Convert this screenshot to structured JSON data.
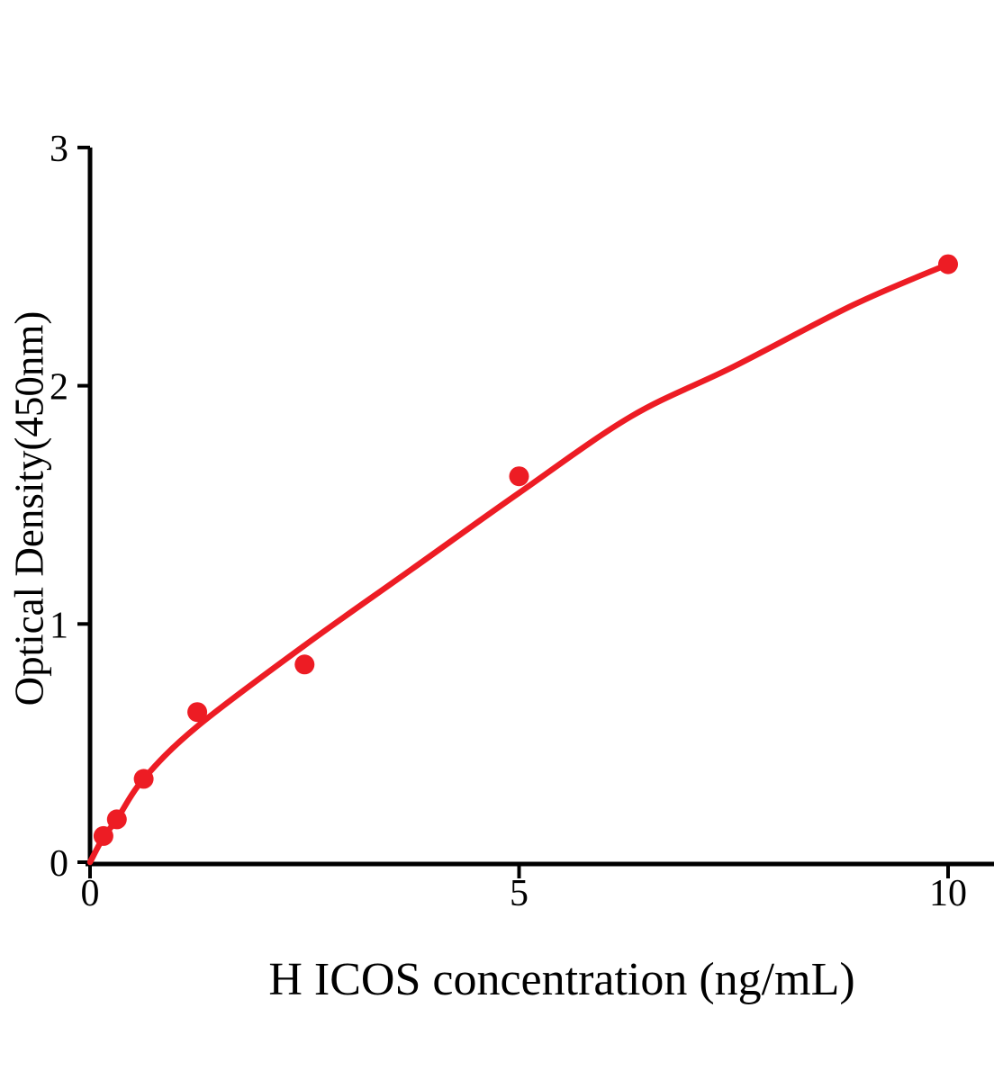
{
  "chart_data": {
    "type": "scatter",
    "title": "",
    "xlabel": "H ICOS concentration (ng/mL)",
    "ylabel": "Optical Density(450nm)",
    "xlim": [
      0,
      10.55
    ],
    "ylim": [
      0,
      3
    ],
    "x_ticks": [
      0,
      5,
      10
    ],
    "y_ticks": [
      0,
      1,
      2,
      3
    ],
    "grid": false,
    "legend": false,
    "marker_color": "#ed1c24",
    "curve_color": "#ed1c24",
    "axis_color": "#000000",
    "points": [
      {
        "x": 0.156,
        "y": 0.11
      },
      {
        "x": 0.313,
        "y": 0.18
      },
      {
        "x": 0.625,
        "y": 0.35
      },
      {
        "x": 1.25,
        "y": 0.63
      },
      {
        "x": 2.5,
        "y": 0.83
      },
      {
        "x": 5,
        "y": 1.62
      },
      {
        "x": 10,
        "y": 2.51
      }
    ],
    "fit_curve": [
      {
        "x": 0,
        "y": 0
      },
      {
        "x": 0.156,
        "y": 0.105
      },
      {
        "x": 0.313,
        "y": 0.18
      },
      {
        "x": 0.625,
        "y": 0.35
      },
      {
        "x": 1.25,
        "y": 0.57
      },
      {
        "x": 2.5,
        "y": 0.91
      },
      {
        "x": 3.75,
        "y": 1.23
      },
      {
        "x": 5,
        "y": 1.55
      },
      {
        "x": 6.3,
        "y": 1.87
      },
      {
        "x": 7.5,
        "y": 2.08
      },
      {
        "x": 8.9,
        "y": 2.34
      },
      {
        "x": 10,
        "y": 2.51
      }
    ]
  }
}
